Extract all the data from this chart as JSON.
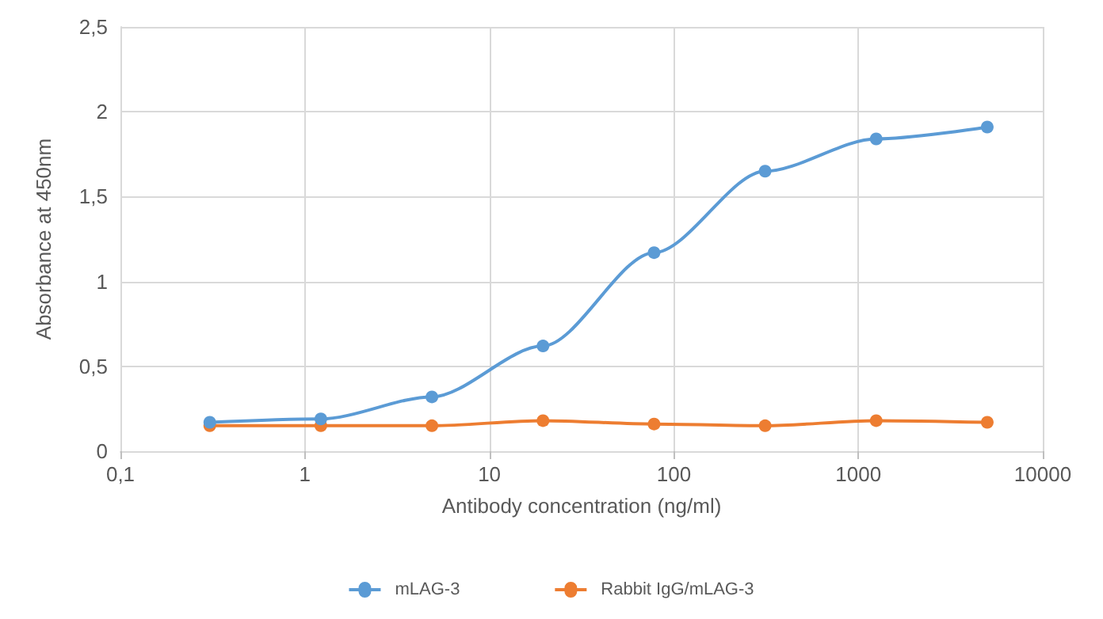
{
  "chart_data": {
    "type": "line",
    "xlabel": "Antibody concentration (ng/ml)",
    "ylabel": "Absorbance at 450nm",
    "x": [
      0.305,
      1.22,
      4.88,
      19.53,
      78.13,
      312.5,
      1250,
      5000
    ],
    "series": [
      {
        "name": "mLAG-3",
        "color": "#5b9bd5",
        "values": [
          0.17,
          0.19,
          0.32,
          0.62,
          1.17,
          1.65,
          1.84,
          1.91
        ]
      },
      {
        "name": "Rabbit IgG/mLAG-3",
        "color": "#ed7d31",
        "values": [
          0.15,
          0.15,
          0.15,
          0.18,
          0.16,
          0.15,
          0.18,
          0.17
        ]
      }
    ],
    "log": "x",
    "xlim": [
      0.1,
      10000
    ],
    "xticks": [
      {
        "value": 0.1,
        "label": "0,1"
      },
      1,
      10,
      100,
      1000,
      10000
    ],
    "ylim": [
      0,
      2.5
    ],
    "yticks": [
      0,
      {
        "value": 0.5,
        "label": "0,5"
      },
      1,
      {
        "value": 1.5,
        "label": "1,5"
      },
      2,
      {
        "value": 2.5,
        "label": "2,5"
      }
    ],
    "grid": true,
    "legend": "bottom",
    "marker": "circle",
    "line_style": "solid"
  }
}
